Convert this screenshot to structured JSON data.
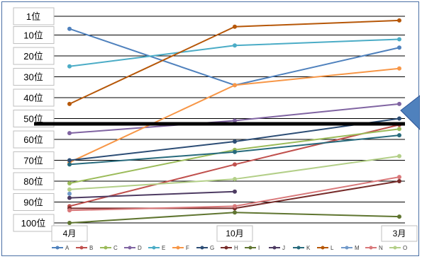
{
  "chart_data": {
    "type": "line",
    "title": "",
    "xlabel": "",
    "ylabel": "",
    "categories": [
      "4月",
      "10月",
      "3月"
    ],
    "y_tick_labels": [
      "1位",
      "10位",
      "20位",
      "30位",
      "40位",
      "50位",
      "60位",
      "70位",
      "80位",
      "90位",
      "100位"
    ],
    "y_reversed": true,
    "ylim": [
      1,
      100
    ],
    "grid": true,
    "legend_position": "bottom",
    "threshold_rank": 50,
    "series": [
      {
        "name": "A",
        "color": "#4f81bd",
        "values": [
          7,
          34,
          16
        ]
      },
      {
        "name": "B",
        "color": "#c0504d",
        "values": [
          92,
          72,
          53
        ]
      },
      {
        "name": "C",
        "color": "#9bbb59",
        "values": [
          81,
          65,
          55
        ]
      },
      {
        "name": "D",
        "color": "#8064a2",
        "values": [
          57,
          51,
          43
        ]
      },
      {
        "name": "E",
        "color": "#4bacc6",
        "values": [
          25,
          15,
          12
        ]
      },
      {
        "name": "F",
        "color": "#f79646",
        "values": [
          71,
          34,
          26
        ]
      },
      {
        "name": "G",
        "color": "#2c4d75",
        "values": [
          70,
          61,
          50
        ]
      },
      {
        "name": "H",
        "color": "#772c2a",
        "values": [
          93,
          93,
          80
        ]
      },
      {
        "name": "I",
        "color": "#5f7530",
        "values": [
          100,
          95,
          97
        ]
      },
      {
        "name": "J",
        "color": "#4d3b62",
        "values": [
          88,
          85,
          null
        ]
      },
      {
        "name": "K",
        "color": "#276a7c",
        "values": [
          72,
          66,
          58
        ]
      },
      {
        "name": "L",
        "color": "#b65708",
        "values": [
          43,
          6,
          3
        ]
      },
      {
        "name": "M",
        "color": "#729aca",
        "values": [
          86,
          null,
          null
        ]
      },
      {
        "name": "N",
        "color": "#d9787a",
        "values": [
          94,
          92,
          78
        ]
      },
      {
        "name": "O",
        "color": "#b3cf88",
        "values": [
          84,
          79,
          68
        ]
      }
    ]
  }
}
